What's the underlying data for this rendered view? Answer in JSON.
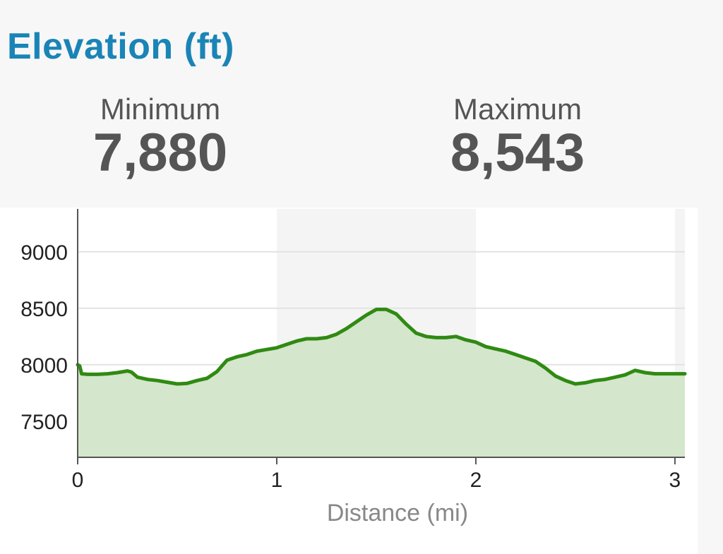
{
  "header": {
    "title": "Elevation (ft)"
  },
  "stats": {
    "minimum_label": "Minimum",
    "minimum_value": "7,880",
    "maximum_label": "Maximum",
    "maximum_value": "8,543"
  },
  "colors": {
    "title": "#1a84b6",
    "line": "#2f8a12",
    "fill": "#d4e6cc",
    "band": "#f4f4f4",
    "grid": "#e2e2e2",
    "text": "#555555"
  },
  "chart_data": {
    "type": "area",
    "title": "",
    "xlabel": "Distance (mi)",
    "ylabel": "",
    "xlim": [
      0,
      3.05
    ],
    "ylim": [
      7180,
      9380
    ],
    "x_ticks": [
      0,
      1,
      2,
      3
    ],
    "x_tick_labels": [
      "0",
      "1",
      "2",
      "3"
    ],
    "y_ticks": [
      7500,
      8000,
      8500,
      9000
    ],
    "y_tick_labels": [
      "7500",
      "8000",
      "8500",
      "9000"
    ],
    "grid": true,
    "legend": "none",
    "series": [
      {
        "x": [
          0.0,
          0.01,
          0.02,
          0.05,
          0.1,
          0.15,
          0.2,
          0.25,
          0.27,
          0.3,
          0.35,
          0.4,
          0.45,
          0.5,
          0.55,
          0.6,
          0.65,
          0.7,
          0.75,
          0.8,
          0.85,
          0.9,
          0.95,
          1.0,
          1.05,
          1.1,
          1.15,
          1.2,
          1.25,
          1.3,
          1.35,
          1.4,
          1.45,
          1.5,
          1.55,
          1.6,
          1.65,
          1.7,
          1.75,
          1.8,
          1.85,
          1.9,
          1.95,
          2.0,
          2.05,
          2.1,
          2.15,
          2.2,
          2.25,
          2.3,
          2.35,
          2.4,
          2.45,
          2.5,
          2.55,
          2.6,
          2.65,
          2.7,
          2.75,
          2.8,
          2.85,
          2.9,
          2.95,
          3.0,
          3.05
        ],
        "y": [
          8000,
          7990,
          7920,
          7915,
          7915,
          7920,
          7930,
          7945,
          7935,
          7890,
          7870,
          7860,
          7845,
          7830,
          7835,
          7860,
          7880,
          7940,
          8040,
          8070,
          8090,
          8120,
          8135,
          8150,
          8180,
          8210,
          8230,
          8230,
          8240,
          8270,
          8320,
          8380,
          8440,
          8490,
          8490,
          8450,
          8360,
          8280,
          8250,
          8240,
          8240,
          8250,
          8220,
          8200,
          8160,
          8140,
          8120,
          8090,
          8060,
          8030,
          7970,
          7900,
          7860,
          7830,
          7840,
          7860,
          7870,
          7890,
          7910,
          7950,
          7930,
          7920,
          7920,
          7920,
          7920
        ]
      }
    ]
  }
}
